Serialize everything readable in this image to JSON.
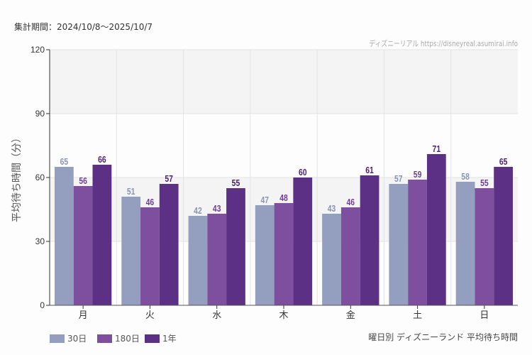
{
  "header": {
    "period": "集計期間：2024/10/8〜2025/10/7",
    "credit": "ディズニーリアル https://disneyreal.asumirai.info"
  },
  "caption": "曜日別 ディズニーランド 平均待ち時間",
  "chart_data": {
    "type": "bar",
    "ylabel": "平均待ち時間（分）",
    "ylim": [
      0,
      120
    ],
    "yticks": [
      0,
      30,
      60,
      90,
      120
    ],
    "grid": true,
    "legend": "bottom-left",
    "categories": [
      "月",
      "火",
      "水",
      "木",
      "金",
      "土",
      "日"
    ],
    "series": [
      {
        "name": "30日",
        "color": "#949ebe",
        "label_color": "#8a93b8",
        "values": [
          65,
          51,
          42,
          47,
          43,
          57,
          58
        ]
      },
      {
        "name": "180日",
        "color": "#7d4f9e",
        "label_color": "#6e3f94",
        "values": [
          56,
          46,
          43,
          48,
          46,
          59,
          55
        ]
      },
      {
        "name": "1年",
        "color": "#5c3085",
        "label_color": "#4a1f73",
        "values": [
          66,
          57,
          55,
          60,
          61,
          71,
          65
        ]
      }
    ]
  }
}
